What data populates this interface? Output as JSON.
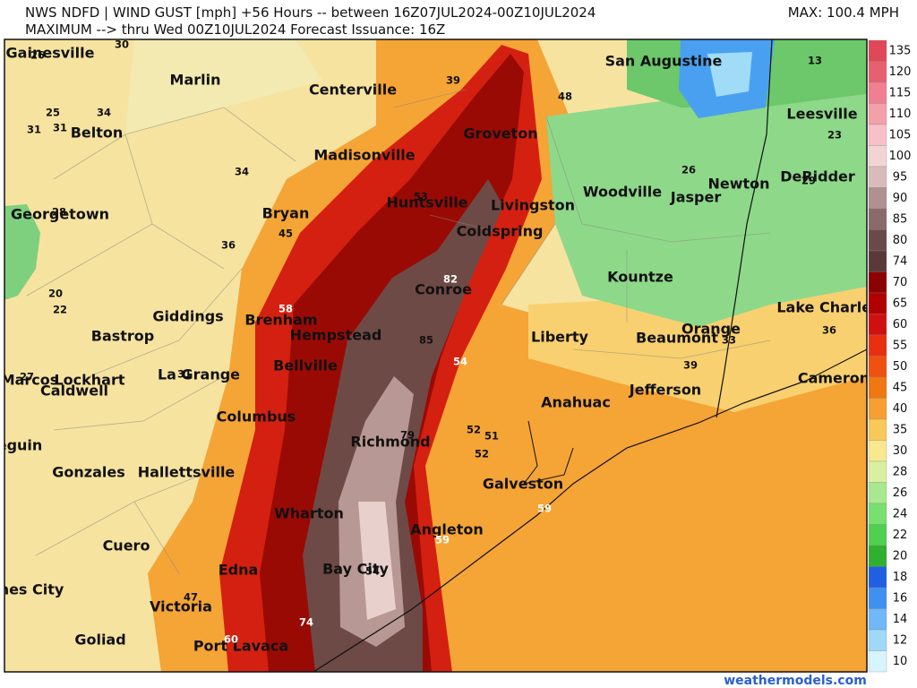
{
  "header": {
    "line1": "NWS NDFD | WIND GUST [mph] +56 Hours -- between 16Z07JUL2024-00Z10JUL2024",
    "line2": "MAXIMUM --> thru Wed 00Z10JUL2024   Forecast Issuance: 16Z",
    "max": "MAX: 100.4 MPH"
  },
  "cities": [
    "Gainesville",
    "Marlin",
    "Centerville",
    "San Augustine",
    "Belton",
    "Groveton",
    "Leesville",
    "Madisonville",
    "Woodville",
    "Jasper",
    "Newton",
    "DeRidder",
    "Huntsville",
    "Livingston",
    "Georgetown",
    "Bryan",
    "Coldspring",
    "Kountze",
    "Conroe",
    "Lake Charles",
    "Giddings",
    "Brenham",
    "Orange",
    "Bastrop",
    "Hempstead",
    "Liberty",
    "Beaumont",
    "Bellville",
    "La Grange",
    "Cameron",
    "Marcos",
    "Lockhart",
    "Jefferson",
    "Caldwell",
    "Anahuac",
    "Columbus",
    "Richmond",
    "eguin",
    "Gonzales",
    "Hallettsville",
    "Galveston",
    "Wharton",
    "Angleton",
    "Cuero",
    "Bay City",
    "Edna",
    "nes City",
    "Victoria",
    "Goliad",
    "Port Lavaca"
  ],
  "values": [
    30,
    26,
    39,
    48,
    13,
    25,
    34,
    31,
    31,
    23,
    34,
    26,
    29,
    28,
    53,
    45,
    36,
    82,
    20,
    22,
    58,
    85,
    54,
    36,
    33,
    39,
    27,
    31,
    79,
    52,
    51,
    52,
    59,
    59,
    54,
    47,
    74,
    60
  ],
  "colorbar": {
    "labels": [
      135,
      120,
      115,
      110,
      105,
      100,
      95,
      90,
      85,
      80,
      74,
      70,
      65,
      60,
      55,
      50,
      45,
      40,
      35,
      30,
      28,
      26,
      24,
      22,
      20,
      18,
      16,
      14,
      12,
      10
    ],
    "colors": [
      "#e04858",
      "#e86070",
      "#f08090",
      "#f4a0a8",
      "#f8c0c8",
      "#f2d4d4",
      "#d8bcbc",
      "#b09090",
      "#8a6a6a",
      "#6a4a48",
      "#5a3a38",
      "#8b0000",
      "#b00000",
      "#d01010",
      "#e83010",
      "#f05010",
      "#f07810",
      "#f5a030",
      "#f8c858",
      "#f8e890",
      "#d8f0a0",
      "#a8e890",
      "#78e070",
      "#50d050",
      "#30b030",
      "#2060e0",
      "#4090f0",
      "#70b8f8",
      "#a0d8f8",
      "#d8f4ff"
    ]
  },
  "footer": "weathermodels.com"
}
